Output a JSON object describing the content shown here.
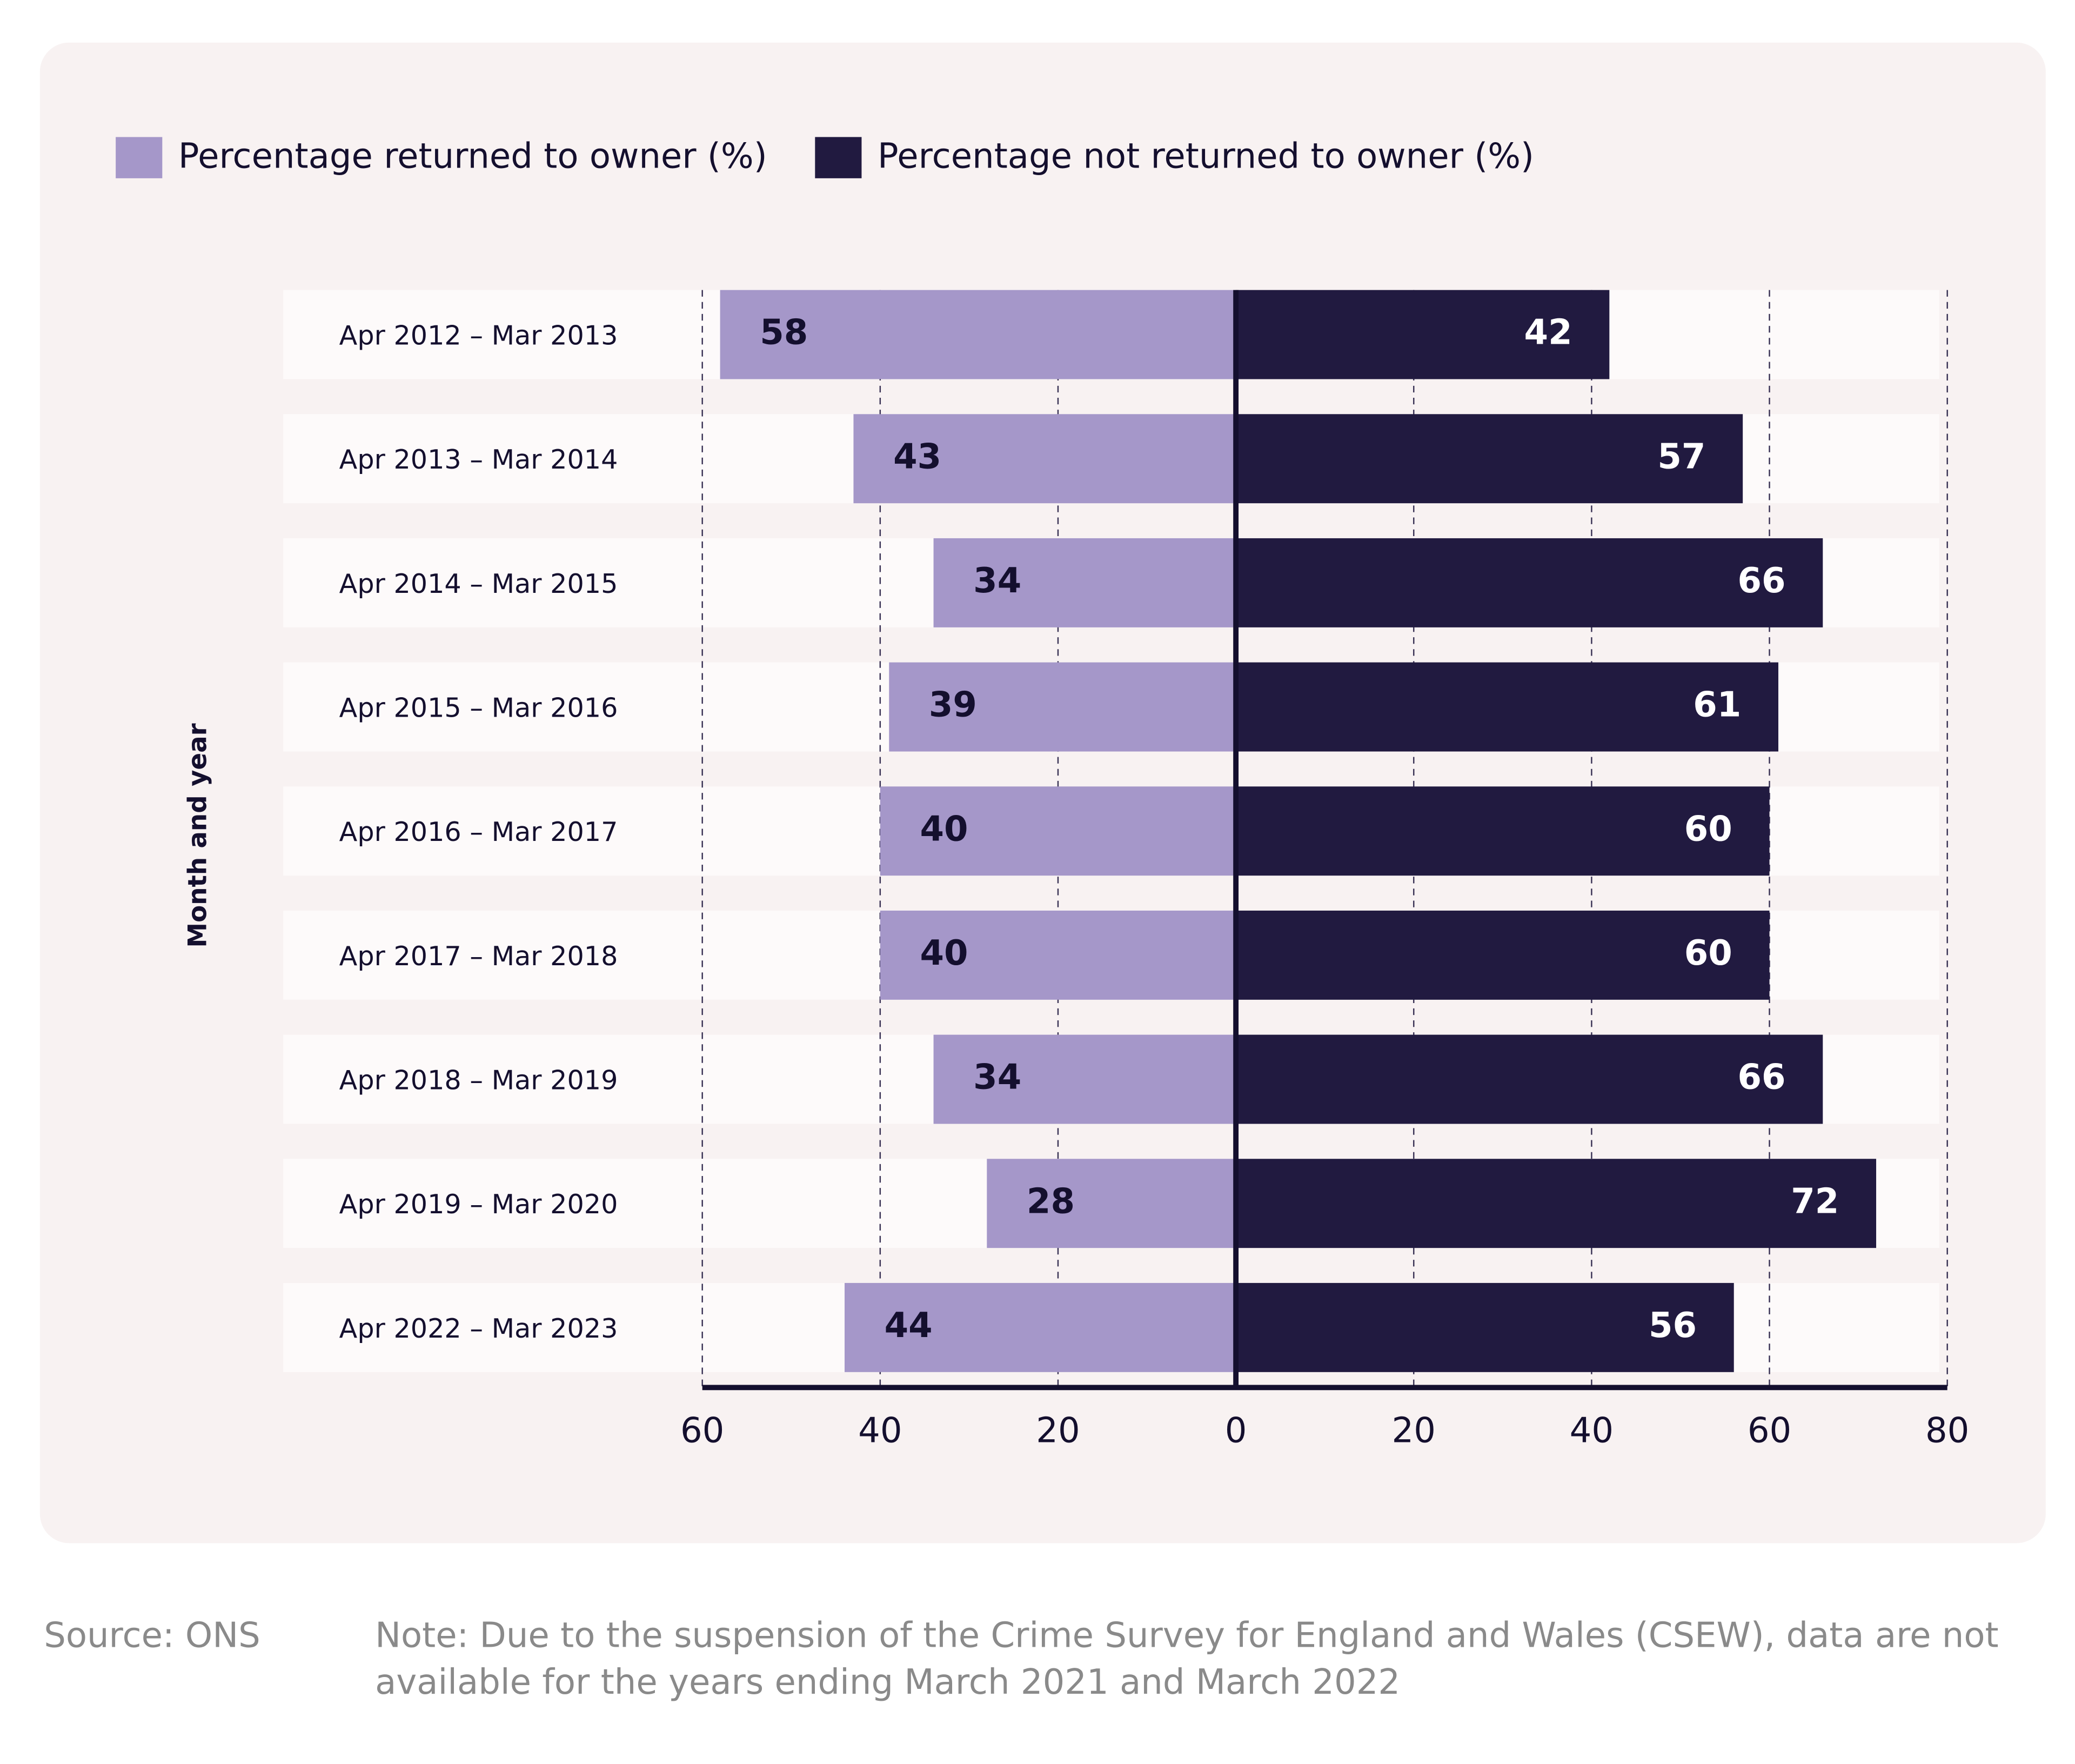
{
  "chart_data": {
    "type": "diverging-bar",
    "categories": [
      "Apr 2012 – Mar 2013",
      "Apr 2013 – Mar 2014",
      "Apr 2014 – Mar 2015",
      "Apr 2015 – Mar 2016",
      "Apr 2016 – Mar 2017",
      "Apr 2017 – Mar 2018",
      "Apr 2018 – Mar 2019",
      "Apr 2019 – Mar 2020",
      "Apr 2022 – Mar 2023"
    ],
    "series": [
      {
        "name": "Percentage returned to owner (%)",
        "color": "#a597c9",
        "values": [
          58,
          43,
          34,
          39,
          40,
          40,
          34,
          28,
          44
        ]
      },
      {
        "name": "Percentage not returned to owner (%)",
        "color": "#211a40",
        "values": [
          42,
          57,
          66,
          61,
          60,
          60,
          66,
          72,
          56
        ]
      }
    ],
    "ylabel": "Month and year",
    "xlim": [
      -60,
      80
    ],
    "xticks": [
      {
        "value": -60,
        "label": "60"
      },
      {
        "value": -40,
        "label": "40"
      },
      {
        "value": -20,
        "label": "20"
      },
      0,
      20,
      40,
      60,
      80
    ],
    "grid": true,
    "legend": "top-left",
    "source": "Source: ONS",
    "note": [
      "Note: Due to the suspension of the Crime Survey for England and Wales (CSEW), data are not",
      "available for the years ending March 2021 and March 2022"
    ]
  }
}
